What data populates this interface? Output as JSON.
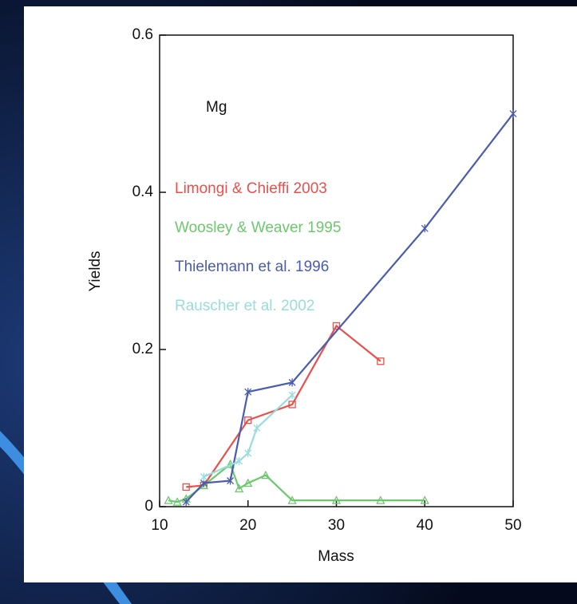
{
  "chart_data": {
    "type": "line",
    "annotation": "Mg",
    "xlabel": "Mass",
    "ylabel": "Yields",
    "xlim": [
      10,
      50
    ],
    "xticks": [
      10,
      20,
      30,
      40,
      50
    ],
    "ylim": [
      0,
      0.6
    ],
    "yticks": [
      0,
      0.2,
      0.4,
      0.6
    ],
    "series": [
      {
        "name": "Limongi & Chieffi 2003",
        "color": "#e8504c",
        "marker": "square",
        "x": [
          13,
          15,
          20,
          25,
          30,
          35
        ],
        "values": [
          0.025,
          0.027,
          0.11,
          0.13,
          0.23,
          0.185
        ]
      },
      {
        "name": "Woosley & Weaver 1995",
        "color": "#6cc86c",
        "marker": "triangle",
        "x": [
          11,
          12,
          13,
          15,
          18,
          19,
          20,
          22,
          25,
          30,
          35,
          40
        ],
        "values": [
          0.008,
          0.006,
          0.01,
          0.027,
          0.054,
          0.023,
          0.03,
          0.04,
          0.008,
          0.008,
          0.008,
          0.008
        ]
      },
      {
        "name": "Thielemann et al. 1996",
        "color": "#4a5cb0",
        "marker": "star",
        "x": [
          13,
          15,
          18,
          20,
          25,
          40,
          50
        ],
        "values": [
          0.006,
          0.03,
          0.033,
          0.146,
          0.158,
          0.354,
          0.5
        ]
      },
      {
        "name": "Rauscher et al. 2002",
        "color": "#9adcdc",
        "marker": "star",
        "x": [
          15,
          19,
          20,
          21,
          25
        ],
        "values": [
          0.038,
          0.058,
          0.068,
          0.1,
          0.142
        ]
      }
    ]
  }
}
